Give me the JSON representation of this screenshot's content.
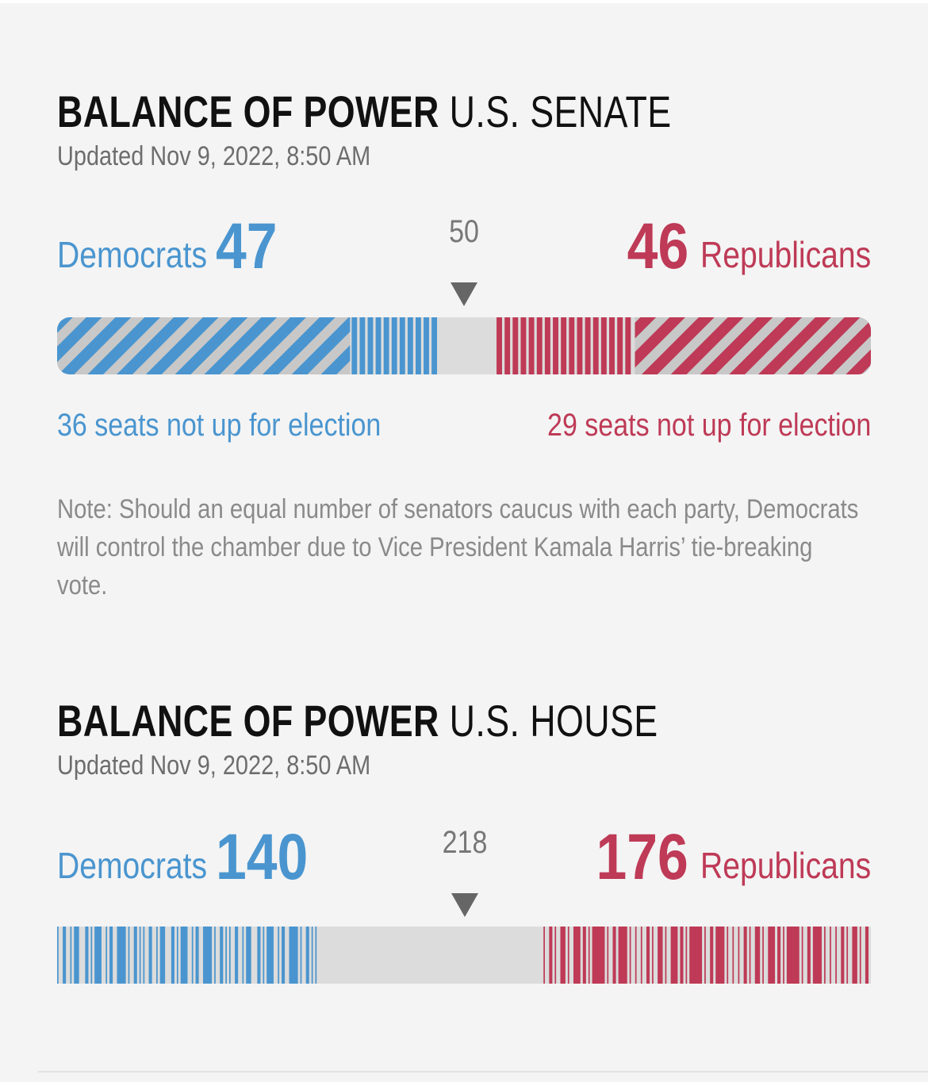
{
  "colors": {
    "democrat": "#4a95cf",
    "republican": "#be3a56",
    "undecided": "#dcdcdc",
    "background": "#f4f4f4"
  },
  "senate": {
    "title_strong": "BALANCE OF POWER",
    "title_light": "U.S. SENATE",
    "updated": "Updated Nov 9, 2022, 8:50 AM",
    "dem_label": "Democrats",
    "dem_count": "47",
    "majority": "50",
    "rep_count": "46",
    "rep_label": "Republicans",
    "dem_not_up": "36 seats not up for election",
    "rep_not_up": "29 seats not up for election",
    "note": "Note: Should an equal number of senators caucus with each party, Democrats will control the chamber due to Vice President Kamala Harris’ tie-breaking vote."
  },
  "house": {
    "title_strong": "BALANCE OF POWER",
    "title_light": "U.S. HOUSE",
    "updated": "Updated Nov 9, 2022, 8:50 AM",
    "dem_label": "Democrats",
    "dem_count": "140",
    "majority": "218",
    "rep_count": "176",
    "rep_label": "Republicans"
  },
  "chart_data": [
    {
      "type": "bar",
      "chamber": "U.S. Senate",
      "total_seats": 100,
      "majority": 50,
      "series": [
        {
          "name": "Democrats",
          "values": [
            47
          ],
          "not_up_for_election": 36
        },
        {
          "name": "Republicans",
          "values": [
            46
          ],
          "not_up_for_election": 29
        }
      ],
      "undecided": 7
    },
    {
      "type": "bar",
      "chamber": "U.S. House",
      "total_seats": 435,
      "majority": 218,
      "series": [
        {
          "name": "Democrats",
          "values": [
            140
          ]
        },
        {
          "name": "Republicans",
          "values": [
            176
          ]
        }
      ],
      "undecided": 119
    }
  ]
}
